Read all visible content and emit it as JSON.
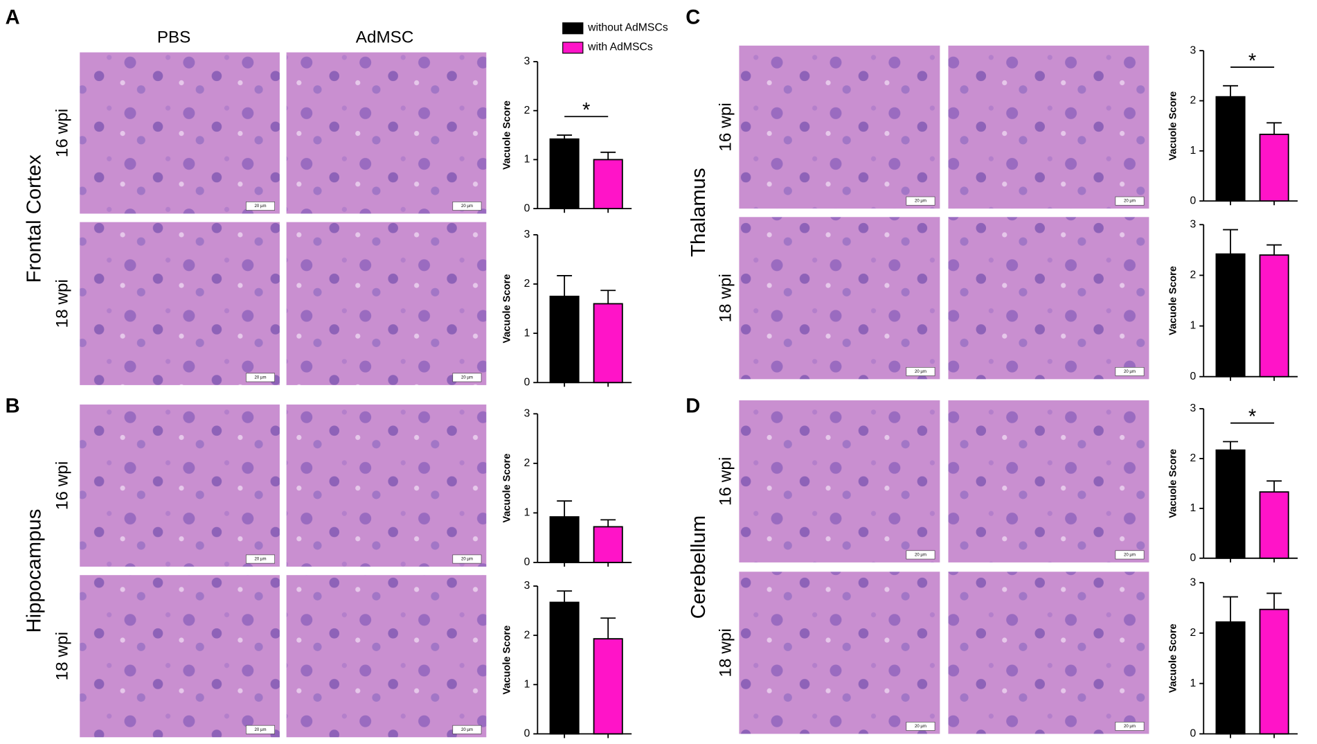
{
  "columns": [
    "PBS",
    "AdMSC"
  ],
  "scale_bar": "20 µm",
  "panels": [
    {
      "letter": "A",
      "region": "Frontal Cortex",
      "rows": [
        "16 wpi",
        "18 wpi"
      ]
    },
    {
      "letter": "B",
      "region": "Hippocampus",
      "rows": [
        "16 wpi",
        "18 wpi"
      ]
    },
    {
      "letter": "C",
      "region": "Thalamus",
      "rows": [
        "16 wpi",
        "18 wpi"
      ]
    },
    {
      "letter": "D",
      "region": "Cerebellum",
      "rows": [
        "16 wpi",
        "18 wpi"
      ]
    }
  ],
  "chart_data": [
    {
      "type": "bar",
      "ylabel": "Vacuole Score",
      "ylim": [
        0,
        3
      ],
      "yticks": [
        0,
        1,
        2,
        3
      ],
      "legend": "top",
      "annotation": "*",
      "series": [
        {
          "name": "without AdMSCs",
          "color": "#000000",
          "values": [
            1.42
          ],
          "errors": [
            0.08
          ]
        },
        {
          "name": "with AdMSCs",
          "color": "#ff14c8",
          "values": [
            1.0
          ],
          "errors": [
            0.15
          ]
        }
      ]
    },
    {
      "type": "bar",
      "ylabel": "Vacuole Score",
      "ylim": [
        0,
        3
      ],
      "yticks": [
        0,
        1,
        2,
        3
      ],
      "series": [
        {
          "color": "#000000",
          "values": [
            1.75
          ],
          "errors": [
            0.42
          ]
        },
        {
          "color": "#ff14c8",
          "values": [
            1.6
          ],
          "errors": [
            0.27
          ]
        }
      ]
    },
    {
      "type": "bar",
      "ylabel": "Vacuole Score",
      "ylim": [
        0,
        3
      ],
      "yticks": [
        0,
        1,
        2,
        3
      ],
      "series": [
        {
          "color": "#000000",
          "values": [
            0.92
          ],
          "errors": [
            0.32
          ]
        },
        {
          "color": "#ff14c8",
          "values": [
            0.72
          ],
          "errors": [
            0.14
          ]
        }
      ]
    },
    {
      "type": "bar",
      "ylabel": "Vacuole Score",
      "ylim": [
        0,
        3
      ],
      "yticks": [
        0,
        1,
        2,
        3
      ],
      "series": [
        {
          "color": "#000000",
          "values": [
            2.67
          ],
          "errors": [
            0.23
          ]
        },
        {
          "color": "#ff14c8",
          "values": [
            1.93
          ],
          "errors": [
            0.42
          ]
        }
      ]
    },
    {
      "type": "bar",
      "ylabel": "Vacuole Score",
      "ylim": [
        0,
        3
      ],
      "yticks": [
        0,
        1,
        2,
        3
      ],
      "annotation": "*",
      "series": [
        {
          "color": "#000000",
          "values": [
            2.08
          ],
          "errors": [
            0.22
          ]
        },
        {
          "color": "#ff14c8",
          "values": [
            1.33
          ],
          "errors": [
            0.23
          ]
        }
      ]
    },
    {
      "type": "bar",
      "ylabel": "Vacuole Score",
      "ylim": [
        0,
        3
      ],
      "yticks": [
        0,
        1,
        2,
        3
      ],
      "series": [
        {
          "color": "#000000",
          "values": [
            2.42
          ],
          "errors": [
            0.48
          ]
        },
        {
          "color": "#ff14c8",
          "values": [
            2.4
          ],
          "errors": [
            0.2
          ]
        }
      ]
    },
    {
      "type": "bar",
      "ylabel": "Vacuole Score",
      "ylim": [
        0,
        3
      ],
      "yticks": [
        0,
        1,
        2,
        3
      ],
      "annotation": "*",
      "series": [
        {
          "color": "#000000",
          "values": [
            2.17
          ],
          "errors": [
            0.17
          ]
        },
        {
          "color": "#ff14c8",
          "values": [
            1.33
          ],
          "errors": [
            0.22
          ]
        }
      ]
    },
    {
      "type": "bar",
      "ylabel": "Vacuole Score",
      "ylim": [
        0,
        3
      ],
      "yticks": [
        0,
        1,
        2,
        3
      ],
      "series": [
        {
          "color": "#000000",
          "values": [
            2.22
          ],
          "errors": [
            0.5
          ]
        },
        {
          "color": "#ff14c8",
          "values": [
            2.47
          ],
          "errors": [
            0.32
          ]
        }
      ]
    }
  ]
}
